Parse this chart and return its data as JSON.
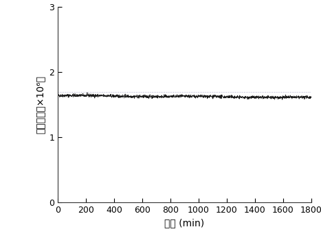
{
  "x_min": 0,
  "x_max": 1800,
  "x_ticks": [
    0,
    200,
    400,
    600,
    800,
    1000,
    1200,
    1400,
    1600,
    1800
  ],
  "y_min": 0,
  "y_max": 3,
  "y_ticks": [
    0,
    1,
    2,
    3
  ],
  "signal_mean": 1.64,
  "signal_noise": 0.012,
  "signal_trend": -0.03,
  "dotted_line_y": 1.695,
  "xlabel": "时间 (min)",
  "ylabel": "信号强度（×10⁶）",
  "line_color": "#1a1a1a",
  "dotted_color": "#aaaacc",
  "background_color": "#ffffff",
  "n_points": 1800,
  "seed": 42,
  "figwidth": 4.67,
  "figheight": 3.47,
  "dpi": 100
}
